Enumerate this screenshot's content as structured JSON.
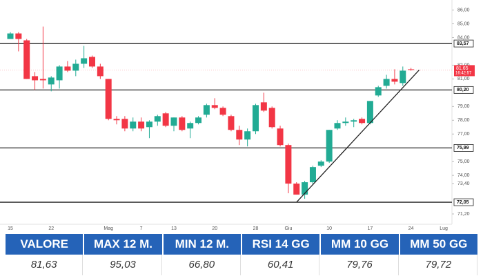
{
  "chart_data": {
    "type": "candlestick",
    "categories": [
      "15",
      null,
      null,
      null,
      null,
      "22",
      null,
      null,
      null,
      null,
      null,
      null,
      "Mag",
      null,
      null,
      null,
      "7",
      null,
      null,
      null,
      "13",
      null,
      null,
      null,
      null,
      "20",
      null,
      null,
      null,
      null,
      "28",
      null,
      null,
      null,
      "Giu",
      null,
      null,
      null,
      null,
      "10",
      null,
      null,
      null,
      null,
      "17",
      null,
      null,
      null,
      null,
      "24",
      null,
      null,
      null,
      "Lug",
      null
    ],
    "open": [
      83.9,
      84.3,
      83.8,
      81.2,
      81.0,
      80.6,
      80.9,
      81.9,
      81.6,
      82.1,
      82.6,
      81.9,
      81.0,
      78.1,
      78.1,
      77.4,
      77.9,
      77.5,
      77.9,
      78.5,
      77.6,
      78.2,
      77.4,
      77.8,
      78.4,
      79.1,
      78.9,
      78.3,
      77.3,
      76.6,
      77.2,
      79.3,
      78.9,
      77.4,
      76.2,
      73.4,
      72.6,
      73.5,
      74.7,
      75.0,
      77.4,
      77.8,
      77.9,
      78.1,
      77.8,
      79.8,
      80.5,
      81.0,
      80.7,
      81.7,
      null,
      null,
      null,
      null,
      null
    ],
    "high": [
      84.4,
      84.4,
      83.9,
      81.5,
      84.8,
      81.2,
      82.0,
      82.3,
      82.4,
      83.4,
      82.7,
      82.1,
      81.0,
      78.3,
      78.3,
      78.2,
      78.2,
      78.0,
      78.4,
      78.6,
      78.2,
      78.3,
      77.9,
      78.3,
      79.2,
      79.6,
      79.0,
      78.4,
      77.6,
      77.4,
      79.2,
      80.0,
      79.0,
      77.6,
      76.3,
      73.5,
      73.6,
      74.7,
      75.1,
      77.3,
      78.0,
      78.2,
      78.1,
      78.2,
      79.4,
      80.5,
      81.3,
      81.7,
      81.9,
      81.8,
      null,
      null,
      null,
      null,
      null
    ],
    "low": [
      83.9,
      83.0,
      81.0,
      80.2,
      80.3,
      80.1,
      80.3,
      81.5,
      81.2,
      81.8,
      81.8,
      81.0,
      78.0,
      77.7,
      77.2,
      77.2,
      77.2,
      76.7,
      77.6,
      77.5,
      77.2,
      77.2,
      76.7,
      77.7,
      78.2,
      78.8,
      78.3,
      77.2,
      76.2,
      76.1,
      77.0,
      78.6,
      77.4,
      76.1,
      72.7,
      72.6,
      72.3,
      73.3,
      74.6,
      74.9,
      77.3,
      77.6,
      77.5,
      77.7,
      77.7,
      79.7,
      80.3,
      80.6,
      80.5,
      81.6,
      null,
      null,
      null,
      null,
      null
    ],
    "close": [
      84.3,
      83.9,
      81.0,
      80.9,
      80.9,
      81.1,
      81.9,
      81.6,
      82.1,
      82.5,
      81.9,
      81.2,
      78.1,
      78.0,
      77.4,
      77.9,
      77.4,
      77.9,
      78.3,
      77.6,
      78.2,
      77.3,
      77.8,
      78.2,
      79.1,
      78.9,
      78.4,
      77.3,
      76.6,
      77.2,
      79.1,
      78.7,
      77.5,
      76.2,
      73.4,
      72.6,
      73.5,
      74.6,
      75.0,
      77.3,
      77.8,
      77.9,
      78.0,
      77.8,
      79.4,
      80.4,
      81.0,
      80.8,
      81.6,
      81.65,
      null,
      null,
      null,
      null,
      null
    ],
    "up_color": "#22ab94",
    "down_color": "#f23645",
    "ylim": [
      70.45,
      86.73
    ],
    "yticks": [
      {
        "value": 86,
        "label": "86,00"
      },
      {
        "value": 85,
        "label": "85,00"
      },
      {
        "value": 84,
        "label": "84,00"
      },
      {
        "value": 82,
        "label": "82,00"
      },
      {
        "value": 81,
        "label": "81,00"
      },
      {
        "value": 79,
        "label": "79,00"
      },
      {
        "value": 78,
        "label": "78,00"
      },
      {
        "value": 77,
        "label": "77,00"
      },
      {
        "value": 75,
        "label": "75,00"
      },
      {
        "value": 74,
        "label": "74,00"
      },
      {
        "value": 73.4,
        "label": "73,40"
      },
      {
        "value": 71.2,
        "label": "71,20"
      }
    ],
    "grid": false,
    "levels": [
      {
        "value": 83.57,
        "label": "83,57"
      },
      {
        "value": 80.2,
        "label": "80,20"
      },
      {
        "value": 75.99,
        "label": "75,99"
      },
      {
        "value": 72.05,
        "label": "72,05"
      }
    ],
    "last_price": {
      "value": 81.65,
      "label": "81,65",
      "time": "16:42:57"
    },
    "trendline": {
      "x": [
        35,
        50
      ],
      "y": [
        72.05,
        81.65
      ]
    }
  },
  "table": {
    "headers": [
      "VALORE",
      "MAX 12 M.",
      "MIN 12 M.",
      "RSI 14 GG",
      "MM 10 GG",
      "MM 50 GG"
    ],
    "values": [
      "81,63",
      "95,03",
      "66,80",
      "60,41",
      "79,76",
      "79,72"
    ]
  }
}
